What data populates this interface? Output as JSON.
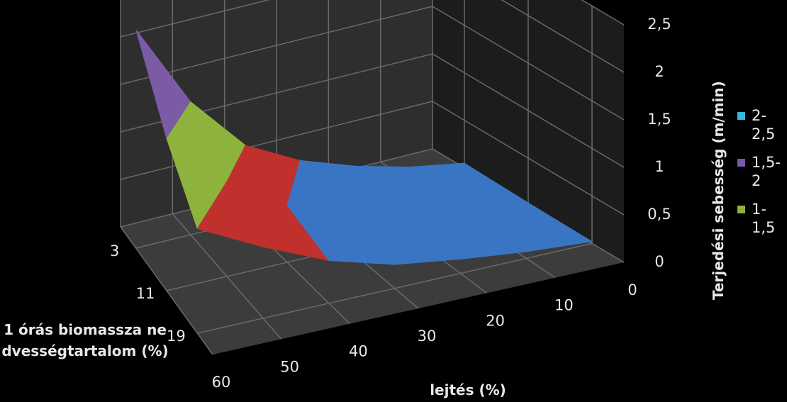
{
  "chart_data": {
    "type": "surface3d",
    "x_title": "lejtés (%)",
    "depth_title": "1 órás biomassza nedvességtartalom (%)",
    "z_title": "Terjedési sebesség  (m/min)",
    "x": [
      0,
      10,
      20,
      30,
      40,
      50,
      60
    ],
    "depth": [
      3,
      11,
      19
    ],
    "z_values": [
      [
        0.05,
        0.15,
        0.3,
        0.5,
        0.8,
        1.4,
        2.3
      ],
      [
        0.03,
        0.1,
        0.2,
        0.35,
        0.6,
        1.0,
        1.6
      ],
      [
        0.02,
        0.07,
        0.15,
        0.25,
        0.45,
        0.75,
        1.1
      ]
    ],
    "zlim": [
      0,
      2.5
    ],
    "zticks": [
      0,
      {
        "value": 0.5,
        "label": "0,5"
      },
      1,
      {
        "value": 1.5,
        "label": "1,5"
      },
      2,
      {
        "value": 2.5,
        "label": "2,5"
      }
    ],
    "bands": [
      {
        "color": "#3a75c4"
      },
      {
        "color": "#c0302c"
      },
      {
        "color": "#8db33c",
        "name": "1-1,5"
      },
      {
        "color": "#7b5aa6",
        "name": "1,5-2"
      },
      {
        "color": "#35b9d8",
        "name": "2-2,5"
      }
    ],
    "grid": true
  }
}
